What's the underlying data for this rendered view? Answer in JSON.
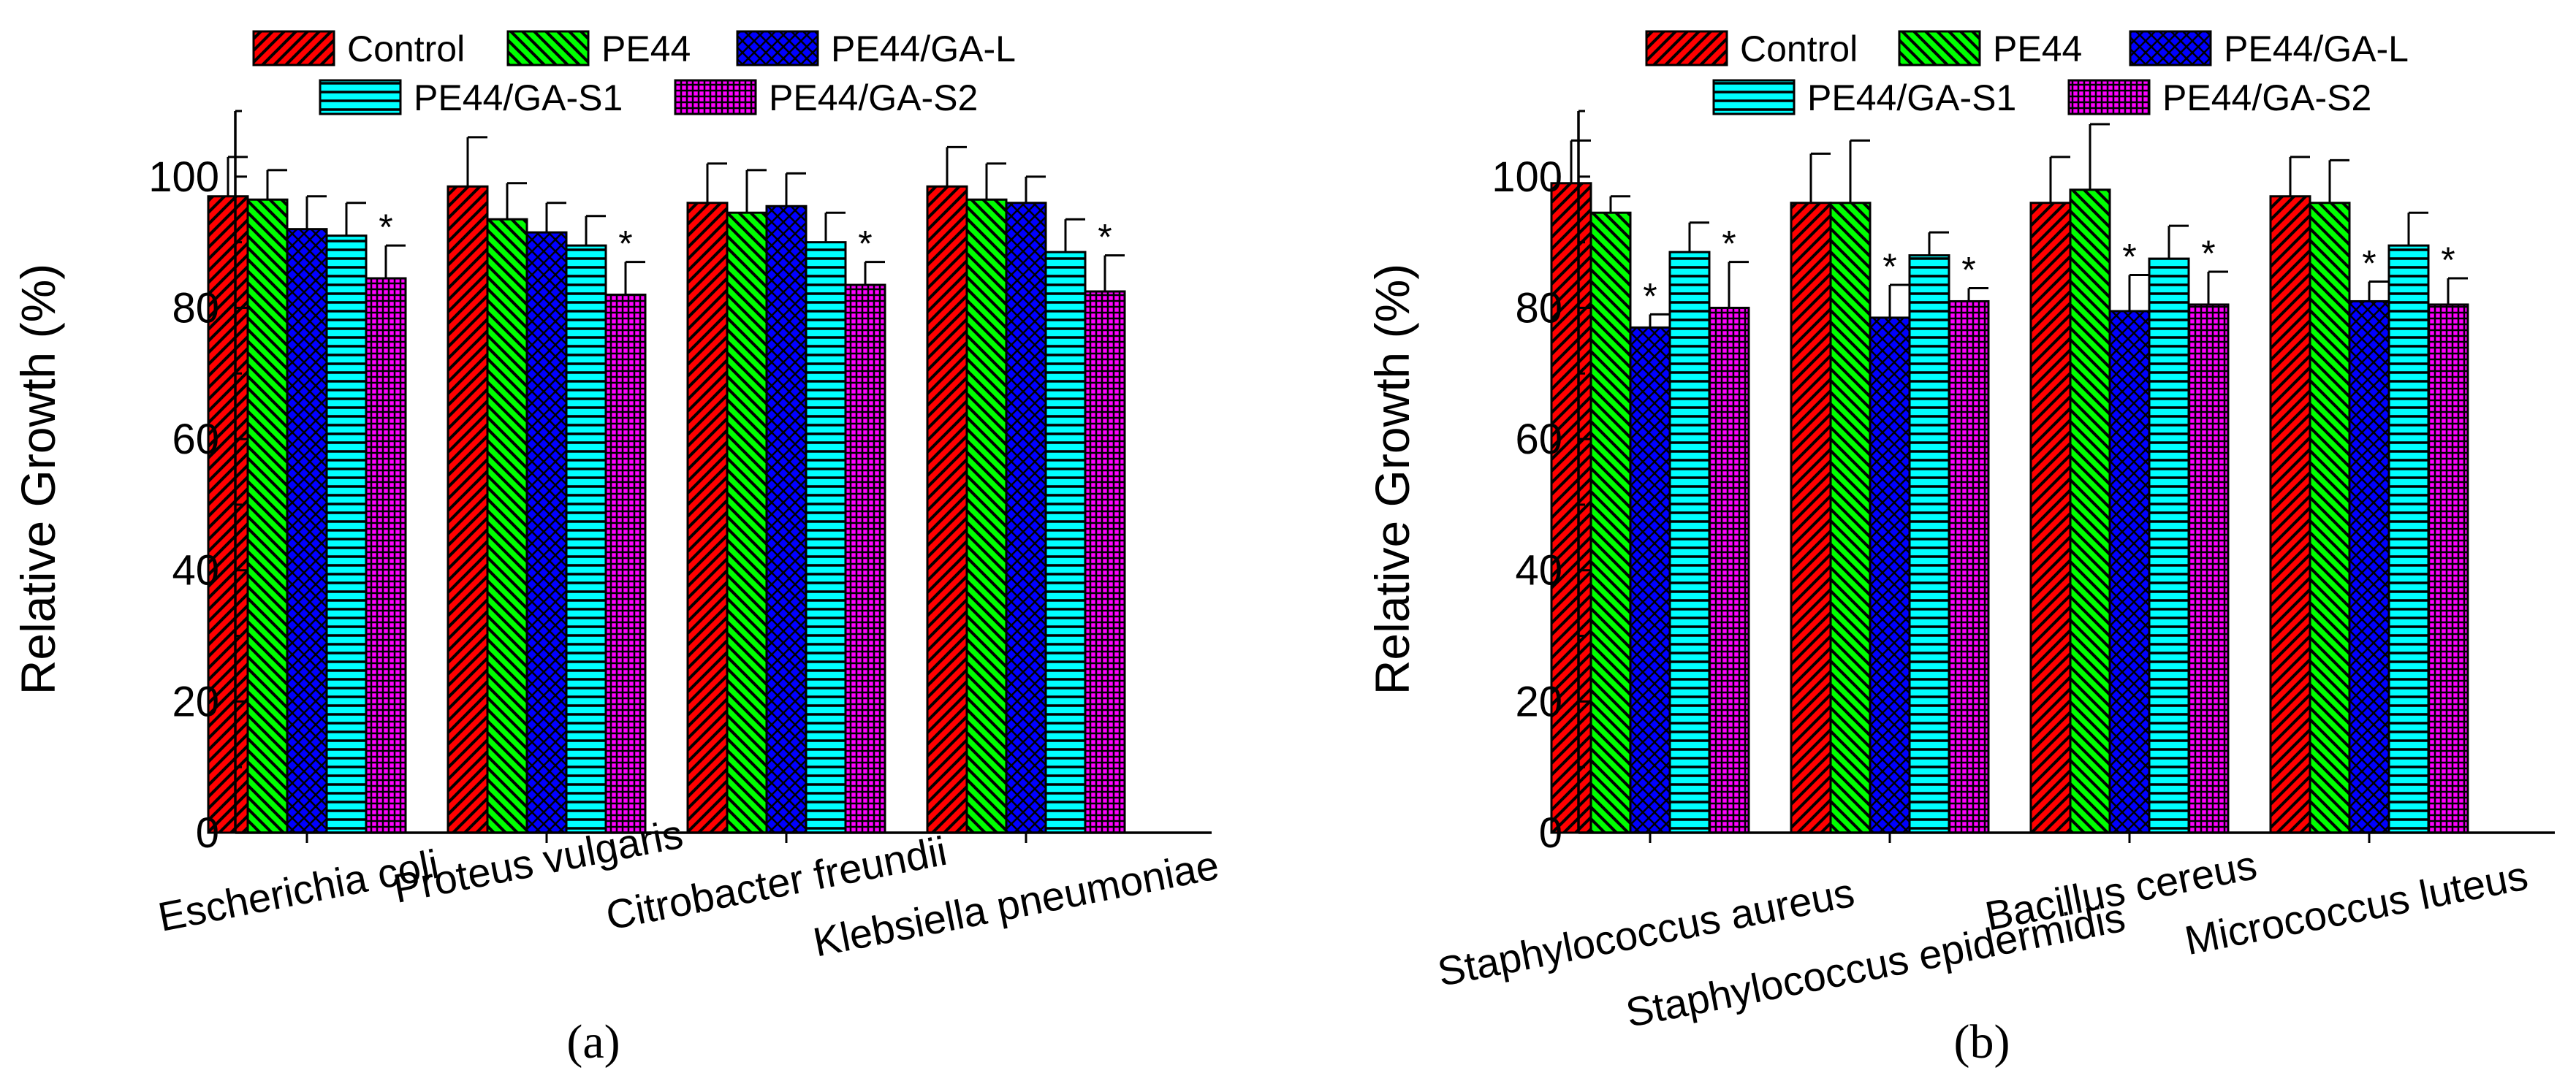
{
  "chart_data": [
    {
      "type": "bar",
      "panel_label": "(a)",
      "ylabel": "Relative Growth (%)",
      "xlabel": "",
      "ylim": [
        0,
        110
      ],
      "yticks": [
        0,
        20,
        40,
        60,
        80,
        100
      ],
      "categories": [
        "Escherichia coli",
        "Proteus vulgaris",
        "Citrobacter freundii",
        "Klebsiella pneumoniae"
      ],
      "series": [
        {
          "name": "Control",
          "values": [
            97,
            98.5,
            96,
            98.5
          ],
          "errors": [
            6,
            7.5,
            6,
            6
          ],
          "significant": [
            false,
            false,
            false,
            false
          ]
        },
        {
          "name": "PE44",
          "values": [
            96.5,
            93.5,
            94.5,
            96.5
          ],
          "errors": [
            4.5,
            5.5,
            6.5,
            5.5
          ],
          "significant": [
            false,
            false,
            false,
            false
          ]
        },
        {
          "name": "PE44/GA-L",
          "values": [
            92,
            91.5,
            95.5,
            96
          ],
          "errors": [
            5,
            4.5,
            5,
            4
          ],
          "significant": [
            false,
            false,
            false,
            false
          ]
        },
        {
          "name": "PE44/GA-S1",
          "values": [
            91,
            89.5,
            90,
            88.5
          ],
          "errors": [
            5,
            4.5,
            4.5,
            5
          ],
          "significant": [
            false,
            false,
            false,
            false
          ]
        },
        {
          "name": "PE44/GA-S2",
          "values": [
            84.5,
            82,
            83.5,
            82.5
          ],
          "errors": [
            5,
            5,
            3.5,
            5.5
          ],
          "significant": [
            true,
            true,
            true,
            true
          ]
        }
      ],
      "significance_marker": "*",
      "grid": false,
      "legend_position": "top"
    },
    {
      "type": "bar",
      "panel_label": "(b)",
      "ylabel": "Relative Growth (%)",
      "xlabel": "",
      "ylim": [
        0,
        110
      ],
      "yticks": [
        0,
        20,
        40,
        60,
        80,
        100
      ],
      "categories": [
        "Staphylococcus aureus",
        "Staphylococcus epidermidis",
        "Bacillus cereus",
        "Micrococcus luteus"
      ],
      "series": [
        {
          "name": "Control",
          "values": [
            99,
            96,
            96,
            97
          ],
          "errors": [
            6.5,
            7.5,
            7,
            6
          ],
          "significant": [
            false,
            false,
            false,
            false
          ]
        },
        {
          "name": "PE44",
          "values": [
            94.5,
            96,
            98,
            96
          ],
          "errors": [
            2.5,
            9.5,
            10,
            6.5
          ],
          "significant": [
            false,
            false,
            false,
            false
          ]
        },
        {
          "name": "PE44/GA-L",
          "values": [
            77,
            78.5,
            79.5,
            81
          ],
          "errors": [
            2,
            5,
            5.5,
            3
          ],
          "significant": [
            true,
            true,
            true,
            true
          ]
        },
        {
          "name": "PE44/GA-S1",
          "values": [
            88.5,
            88,
            87.5,
            89.5
          ],
          "errors": [
            4.5,
            3.5,
            5,
            5
          ],
          "significant": [
            false,
            false,
            false,
            false
          ]
        },
        {
          "name": "PE44/GA-S2",
          "values": [
            80,
            81,
            80.5,
            80.5
          ],
          "errors": [
            7,
            2,
            5,
            4
          ],
          "significant": [
            true,
            true,
            true,
            true
          ]
        }
      ],
      "significance_marker": "*",
      "grid": false,
      "legend_position": "top"
    }
  ],
  "style": {
    "series_colors": [
      "#ff0000",
      "#00ff00",
      "#0000ff",
      "#00ffff",
      "#ff00ff"
    ],
    "series_patterns": [
      "diagonal-up",
      "diagonal-down",
      "crosshatch",
      "horizontal",
      "grid"
    ],
    "axis_color": "#000000"
  }
}
